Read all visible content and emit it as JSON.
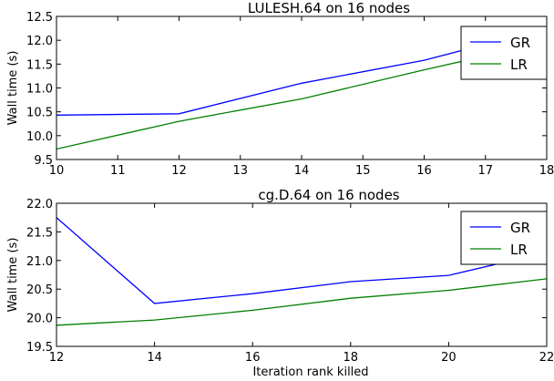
{
  "chart_data": [
    {
      "type": "line",
      "title": "LULESH.64 on 16 nodes",
      "xlabel": "",
      "ylabel": "Wall time (s)",
      "xlim": [
        10,
        18
      ],
      "ylim": [
        9.5,
        12.5
      ],
      "x_ticks": [
        "10",
        "11",
        "12",
        "13",
        "14",
        "15",
        "16",
        "17",
        "18"
      ],
      "y_ticks": [
        "9.5",
        "10.0",
        "10.5",
        "11.0",
        "11.5",
        "12.0",
        "12.5"
      ],
      "x": [
        10,
        12,
        14,
        16,
        18
      ],
      "series": [
        {
          "name": "GR",
          "color": "#0000ff",
          "values": [
            10.43,
            10.46,
            11.1,
            11.58,
            12.25
          ]
        },
        {
          "name": "LR",
          "color": "#008000",
          "values": [
            9.72,
            10.3,
            10.77,
            11.38,
            11.96
          ]
        }
      ],
      "legend": "top-right",
      "grid": false
    },
    {
      "type": "line",
      "title": "cg.D.64 on 16 nodes",
      "xlabel": "Iteration rank killed",
      "ylabel": "Wall time (s)",
      "xlim": [
        12,
        22
      ],
      "ylim": [
        19.5,
        22.0
      ],
      "x_ticks": [
        "12",
        "14",
        "16",
        "18",
        "20",
        "22"
      ],
      "y_ticks": [
        "19.5",
        "20.0",
        "20.5",
        "21.0",
        "21.5",
        "22.0"
      ],
      "x": [
        12,
        14,
        16,
        18,
        20,
        22
      ],
      "series": [
        {
          "name": "GR",
          "color": "#0000ff",
          "values": [
            21.75,
            20.25,
            20.42,
            20.63,
            20.74,
            21.14
          ]
        },
        {
          "name": "LR",
          "color": "#008000",
          "values": [
            19.87,
            19.96,
            20.13,
            20.34,
            20.48,
            20.68
          ]
        }
      ],
      "legend": "top-right",
      "grid": false
    }
  ]
}
